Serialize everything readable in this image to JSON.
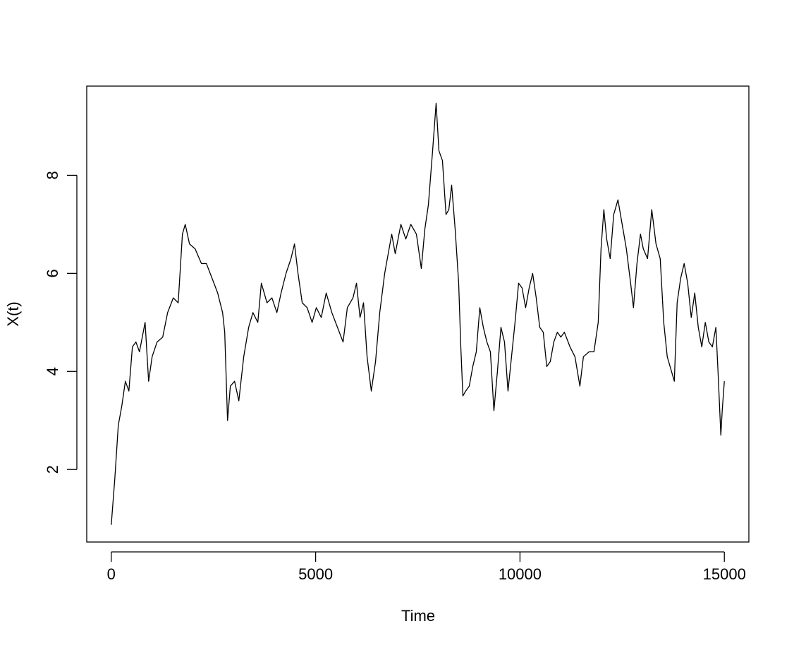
{
  "chart_data": {
    "type": "line",
    "xlabel": "Time",
    "ylabel": "X(t)",
    "color": "#000000",
    "x": [
      0,
      86,
      172,
      259,
      345,
      431,
      517,
      603,
      690,
      828,
      914,
      1000,
      1121,
      1259,
      1379,
      1517,
      1638,
      1741,
      1810,
      1914,
      2052,
      2207,
      2328,
      2466,
      2603,
      2724,
      2776,
      2845,
      2914,
      3017,
      3121,
      3241,
      3362,
      3466,
      3586,
      3672,
      3810,
      3931,
      4052,
      4155,
      4276,
      4397,
      4483,
      4569,
      4672,
      4793,
      4914,
      5017,
      5138,
      5259,
      5397,
      5534,
      5672,
      5776,
      5914,
      6000,
      6086,
      6172,
      6259,
      6362,
      6466,
      6569,
      6690,
      6776,
      6862,
      6948,
      7086,
      7207,
      7328,
      7466,
      7586,
      7672,
      7759,
      7862,
      7948,
      8017,
      8103,
      8190,
      8259,
      8328,
      8414,
      8500,
      8552,
      8603,
      8672,
      8759,
      8845,
      8931,
      9017,
      9103,
      9190,
      9276,
      9362,
      9448,
      9534,
      9621,
      9707,
      9793,
      9879,
      9966,
      10052,
      10138,
      10224,
      10310,
      10397,
      10483,
      10569,
      10655,
      10741,
      10828,
      10914,
      11000,
      11086,
      11224,
      11345,
      11466,
      11552,
      11690,
      11810,
      11914,
      11983,
      12052,
      12121,
      12207,
      12293,
      12397,
      12500,
      12603,
      12707,
      12776,
      12862,
      12948,
      13017,
      13121,
      13224,
      13328,
      13431,
      13517,
      13603,
      13707,
      13776,
      13845,
      13931,
      14017,
      14103,
      14190,
      14276,
      14362,
      14448,
      14534,
      14621,
      14707,
      14793,
      14845,
      14914,
      14948,
      15000
    ],
    "values": [
      0.87,
      1.8,
      2.9,
      3.3,
      3.8,
      3.6,
      4.5,
      4.6,
      4.4,
      5.0,
      3.8,
      4.3,
      4.6,
      4.7,
      5.2,
      5.5,
      5.4,
      6.8,
      7.0,
      6.6,
      6.5,
      6.2,
      6.2,
      5.9,
      5.6,
      5.2,
      4.8,
      3.0,
      3.7,
      3.8,
      3.4,
      4.3,
      4.9,
      5.2,
      5.0,
      5.8,
      5.4,
      5.5,
      5.2,
      5.6,
      6.0,
      6.3,
      6.6,
      6.0,
      5.4,
      5.3,
      5.0,
      5.3,
      5.1,
      5.6,
      5.2,
      4.9,
      4.6,
      5.3,
      5.5,
      5.8,
      5.1,
      5.4,
      4.3,
      3.6,
      4.2,
      5.2,
      6.0,
      6.4,
      6.8,
      6.4,
      7.0,
      6.7,
      7.0,
      6.8,
      6.1,
      6.9,
      7.4,
      8.5,
      9.47,
      8.5,
      8.3,
      7.2,
      7.3,
      7.8,
      6.9,
      5.8,
      4.5,
      3.5,
      3.6,
      3.7,
      4.1,
      4.4,
      5.3,
      4.9,
      4.6,
      4.4,
      3.2,
      4.0,
      4.9,
      4.6,
      3.6,
      4.3,
      5.0,
      5.8,
      5.7,
      5.3,
      5.7,
      6.0,
      5.5,
      4.9,
      4.8,
      4.1,
      4.2,
      4.6,
      4.8,
      4.7,
      4.8,
      4.5,
      4.3,
      3.7,
      4.3,
      4.4,
      4.4,
      5.0,
      6.5,
      7.3,
      6.7,
      6.3,
      7.2,
      7.5,
      7.0,
      6.5,
      5.8,
      5.3,
      6.2,
      6.8,
      6.5,
      6.3,
      7.3,
      6.6,
      6.3,
      5.0,
      4.3,
      4.0,
      3.8,
      5.4,
      5.9,
      6.2,
      5.8,
      5.1,
      5.6,
      4.9,
      4.5,
      5.0,
      4.6,
      4.5,
      4.9,
      4.0,
      2.7,
      3.2,
      3.8
    ],
    "xlim": [
      -600,
      15600
    ],
    "xticks": [
      0,
      5000,
      10000,
      15000
    ],
    "ylim": [
      0.52,
      9.82
    ],
    "yticks": [
      2,
      4,
      6,
      8
    ]
  }
}
